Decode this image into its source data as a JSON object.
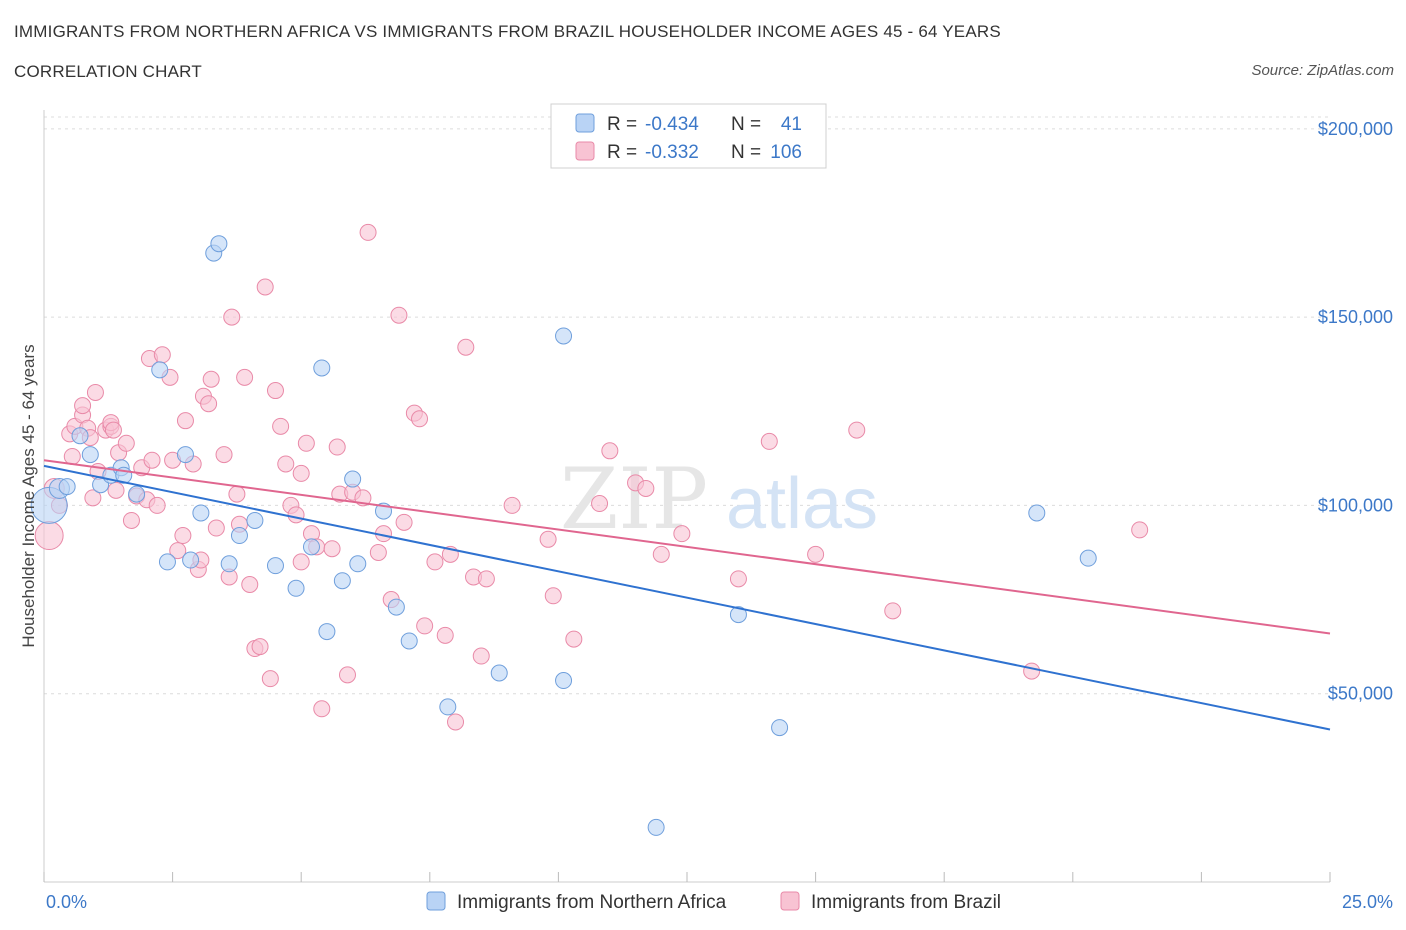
{
  "title": "IMMIGRANTS FROM NORTHERN AFRICA VS IMMIGRANTS FROM BRAZIL HOUSEHOLDER INCOME AGES 45 - 64 YEARS",
  "subtitle": "CORRELATION CHART",
  "source": "Source: ZipAtlas.com",
  "watermark": {
    "zip": "ZIP",
    "atlas": "atlas"
  },
  "colors": {
    "blue_fill": "#b9d3f5",
    "blue_stroke": "#6f9fdc",
    "blue_line": "#2f72d0",
    "pink_fill": "#f8c3d3",
    "pink_stroke": "#e98aa8",
    "pink_line": "#e0668f",
    "axis_label": "#3c78c8",
    "grid": "#dcdcdc"
  },
  "legend_box": {
    "rows": [
      {
        "r_label": "R =",
        "r_value": "-0.434",
        "n_label": "N =",
        "n_value": "41"
      },
      {
        "r_label": "R =",
        "r_value": "-0.332",
        "n_label": "N =",
        "n_value": "106"
      }
    ]
  },
  "chart_data": {
    "type": "scatter",
    "title": "IMMIGRANTS FROM NORTHERN AFRICA VS IMMIGRANTS FROM BRAZIL HOUSEHOLDER INCOME AGES 45 - 64 YEARS",
    "subtitle": "CORRELATION CHART",
    "xlabel": "",
    "ylabel": "Householder Income Ages 45 - 64 years",
    "xlim": [
      0,
      25
    ],
    "ylim": [
      0,
      205000
    ],
    "x_tick_labels": [
      {
        "value": 0,
        "label": "0.0%"
      },
      {
        "value": 25,
        "label": "25.0%"
      }
    ],
    "y_tick_labels": [
      {
        "value": 50000,
        "label": "$50,000"
      },
      {
        "value": 100000,
        "label": "$100,000"
      },
      {
        "value": 150000,
        "label": "$150,000"
      },
      {
        "value": 200000,
        "label": "$200,000"
      }
    ],
    "grid": true,
    "legend_position": "bottom-center",
    "series": [
      {
        "name": "Immigrants from Northern Africa",
        "color": "#6f9fdc",
        "r": -0.434,
        "n": 41,
        "trend": {
          "x": [
            0,
            25
          ],
          "y": [
            110500,
            40500
          ]
        },
        "points": [
          [
            0.1,
            100000,
            18
          ],
          [
            0.3,
            104500,
            10
          ],
          [
            0.45,
            105000,
            8
          ],
          [
            0.7,
            118500,
            8
          ],
          [
            0.9,
            113500,
            8
          ],
          [
            1.1,
            105500,
            8
          ],
          [
            1.3,
            108000,
            8
          ],
          [
            1.5,
            110000,
            8
          ],
          [
            1.55,
            108000,
            8
          ],
          [
            1.8,
            103000,
            8
          ],
          [
            2.25,
            136000,
            8
          ],
          [
            2.4,
            85000,
            8
          ],
          [
            2.75,
            113500,
            8
          ],
          [
            2.85,
            85500,
            8
          ],
          [
            3.05,
            98000,
            8
          ],
          [
            3.3,
            167000,
            8
          ],
          [
            3.4,
            169500,
            8
          ],
          [
            3.6,
            84500,
            8
          ],
          [
            3.8,
            92000,
            8
          ],
          [
            4.1,
            96000,
            8
          ],
          [
            4.5,
            84000,
            8
          ],
          [
            4.9,
            78000,
            8
          ],
          [
            5.2,
            89000,
            8
          ],
          [
            5.4,
            136500,
            8
          ],
          [
            5.5,
            66500,
            8
          ],
          [
            5.8,
            80000,
            8
          ],
          [
            6.0,
            107000,
            8
          ],
          [
            6.1,
            84500,
            8
          ],
          [
            6.6,
            98500,
            8
          ],
          [
            6.85,
            73000,
            8
          ],
          [
            7.1,
            64000,
            8
          ],
          [
            7.85,
            46500,
            8
          ],
          [
            8.85,
            55500,
            8
          ],
          [
            10.1,
            53500,
            8
          ],
          [
            10.1,
            145000,
            8
          ],
          [
            11.9,
            14500,
            8
          ],
          [
            13.5,
            71000,
            8
          ],
          [
            14.3,
            41000,
            8
          ],
          [
            19.3,
            98000,
            8
          ],
          [
            20.3,
            86000,
            8
          ]
        ]
      },
      {
        "name": "Immigrants from Brazil",
        "color": "#e98aa8",
        "r": -0.332,
        "n": 106,
        "trend": {
          "x": [
            0,
            25
          ],
          "y": [
            112000,
            66000
          ]
        },
        "points": [
          [
            0.1,
            92000,
            14
          ],
          [
            0.2,
            104500,
            10
          ],
          [
            0.3,
            100000,
            8
          ],
          [
            0.5,
            119000,
            8
          ],
          [
            0.55,
            113000,
            8
          ],
          [
            0.6,
            121000,
            8
          ],
          [
            0.75,
            124000,
            8
          ],
          [
            0.75,
            126500,
            8
          ],
          [
            0.85,
            120500,
            8
          ],
          [
            0.9,
            118000,
            8
          ],
          [
            0.95,
            102000,
            8
          ],
          [
            1.0,
            130000,
            8
          ],
          [
            1.05,
            109000,
            8
          ],
          [
            1.2,
            120000,
            8
          ],
          [
            1.3,
            121000,
            8
          ],
          [
            1.3,
            122000,
            8
          ],
          [
            1.35,
            120000,
            8
          ],
          [
            1.4,
            104000,
            8
          ],
          [
            1.45,
            114000,
            8
          ],
          [
            1.6,
            116500,
            8
          ],
          [
            1.7,
            96000,
            8
          ],
          [
            1.8,
            102500,
            8
          ],
          [
            1.9,
            110000,
            8
          ],
          [
            2.0,
            101500,
            8
          ],
          [
            2.05,
            139000,
            8
          ],
          [
            2.1,
            112000,
            8
          ],
          [
            2.2,
            100000,
            8
          ],
          [
            2.3,
            140000,
            8
          ],
          [
            2.45,
            134000,
            8
          ],
          [
            2.5,
            112000,
            8
          ],
          [
            2.6,
            88000,
            8
          ],
          [
            2.7,
            92000,
            8
          ],
          [
            2.75,
            122500,
            8
          ],
          [
            2.9,
            111000,
            8
          ],
          [
            3.0,
            83000,
            8
          ],
          [
            3.05,
            85500,
            8
          ],
          [
            3.1,
            129000,
            8
          ],
          [
            3.2,
            127000,
            8
          ],
          [
            3.25,
            133500,
            8
          ],
          [
            3.35,
            94000,
            8
          ],
          [
            3.5,
            113500,
            8
          ],
          [
            3.6,
            81000,
            8
          ],
          [
            3.65,
            150000,
            8
          ],
          [
            3.75,
            103000,
            8
          ],
          [
            3.8,
            95000,
            8
          ],
          [
            3.9,
            134000,
            8
          ],
          [
            4.0,
            79000,
            8
          ],
          [
            4.1,
            62000,
            8
          ],
          [
            4.2,
            62500,
            8
          ],
          [
            4.3,
            158000,
            8
          ],
          [
            4.4,
            54000,
            8
          ],
          [
            4.5,
            130500,
            8
          ],
          [
            4.6,
            121000,
            8
          ],
          [
            4.7,
            111000,
            8
          ],
          [
            4.8,
            100000,
            8
          ],
          [
            4.9,
            97500,
            8
          ],
          [
            5.0,
            108500,
            8
          ],
          [
            5.0,
            85000,
            8
          ],
          [
            5.1,
            116500,
            8
          ],
          [
            5.2,
            92500,
            8
          ],
          [
            5.3,
            89000,
            8
          ],
          [
            5.4,
            46000,
            8
          ],
          [
            5.6,
            88500,
            8
          ],
          [
            5.7,
            115500,
            8
          ],
          [
            5.75,
            103000,
            8
          ],
          [
            5.9,
            55000,
            8
          ],
          [
            6.0,
            103500,
            8
          ],
          [
            6.2,
            102000,
            8
          ],
          [
            6.3,
            172500,
            8
          ],
          [
            6.5,
            87500,
            8
          ],
          [
            6.6,
            92500,
            8
          ],
          [
            6.75,
            75000,
            8
          ],
          [
            6.9,
            150500,
            8
          ],
          [
            7.0,
            95500,
            8
          ],
          [
            7.2,
            124500,
            8
          ],
          [
            7.3,
            123000,
            8
          ],
          [
            7.4,
            68000,
            8
          ],
          [
            7.6,
            85000,
            8
          ],
          [
            7.8,
            65500,
            8
          ],
          [
            7.9,
            87000,
            8
          ],
          [
            8.0,
            42500,
            8
          ],
          [
            8.2,
            142000,
            8
          ],
          [
            8.35,
            81000,
            8
          ],
          [
            8.5,
            60000,
            8
          ],
          [
            8.6,
            80500,
            8
          ],
          [
            9.1,
            100000,
            8
          ],
          [
            9.8,
            91000,
            8
          ],
          [
            9.9,
            76000,
            8
          ],
          [
            10.3,
            64500,
            8
          ],
          [
            10.8,
            100500,
            8
          ],
          [
            11.0,
            114500,
            8
          ],
          [
            11.5,
            106000,
            8
          ],
          [
            11.7,
            104500,
            8
          ],
          [
            12.0,
            87000,
            8
          ],
          [
            12.4,
            92500,
            8
          ],
          [
            13.5,
            80500,
            8
          ],
          [
            14.1,
            117000,
            8
          ],
          [
            15.0,
            87000,
            8
          ],
          [
            15.8,
            120000,
            8
          ],
          [
            16.5,
            72000,
            8
          ],
          [
            19.2,
            56000,
            8
          ],
          [
            21.3,
            93500,
            8
          ]
        ]
      }
    ]
  }
}
